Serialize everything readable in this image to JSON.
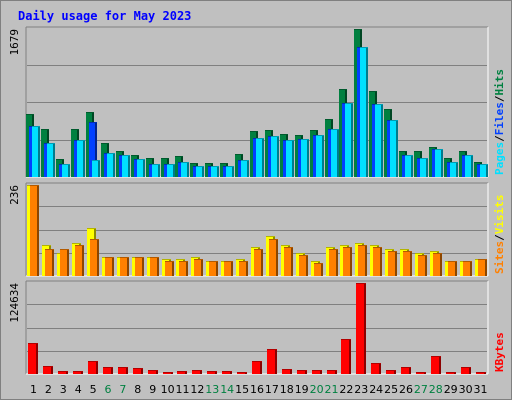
{
  "chart_data": {
    "type": "bar",
    "title": "Daily usage for May 2023",
    "categories": [
      "1",
      "2",
      "3",
      "4",
      "5",
      "6",
      "7",
      "8",
      "9",
      "10",
      "11",
      "12",
      "13",
      "14",
      "15",
      "16",
      "17",
      "18",
      "19",
      "20",
      "21",
      "22",
      "23",
      "24",
      "25",
      "26",
      "27",
      "28",
      "29",
      "30",
      "31"
    ],
    "weekend_days": [
      "6",
      "7",
      "13",
      "14",
      "20",
      "21",
      "27",
      "28"
    ],
    "panels": [
      {
        "id": "pfh",
        "max_label": "1679",
        "ymax": 1679,
        "series": [
          {
            "name": "Hits",
            "color": "#008040",
            "values": [
              720,
              540,
              205,
              540,
              740,
              385,
              300,
              245,
              210,
              210,
              240,
              155,
              155,
              155,
              265,
              525,
              530,
              485,
              475,
              530,
              660,
              1000,
              1679,
              970,
              770,
              290,
              290,
              345,
              210,
              300,
              175
            ]
          },
          {
            "name": "Files",
            "color": "#0040ff",
            "values": [
              580,
              390,
              150,
              420,
              625,
              270,
              245,
              200,
              145,
              150,
              175,
              120,
              120,
              130,
              190,
              440,
              470,
              415,
              430,
              475,
              550,
              840,
              1480,
              830,
              645,
              255,
              220,
              320,
              175,
              250,
              145
            ]
          },
          {
            "name": "Pages",
            "color": "#00e0ff",
            "values": [
              580,
              390,
              150,
              420,
              190,
              270,
              245,
              200,
              145,
              150,
              175,
              120,
              120,
              130,
              190,
              440,
              470,
              415,
              430,
              475,
              550,
              840,
              1480,
              830,
              645,
              255,
              220,
              320,
              175,
              250,
              145
            ]
          }
        ],
        "legend": [
          "Pages",
          "/",
          "Files",
          "/",
          "Hits"
        ]
      },
      {
        "id": "sv",
        "max_label": "236",
        "ymax": 236,
        "series": [
          {
            "name": "Visits",
            "color": "#ffff00",
            "values": [
              236,
              80,
              60,
              85,
              125,
              50,
              50,
              50,
              50,
              45,
              45,
              50,
              40,
              40,
              45,
              75,
              105,
              80,
              60,
              40,
              75,
              80,
              85,
              80,
              70,
              70,
              60,
              65,
              40,
              40,
              45
            ]
          },
          {
            "name": "Sites",
            "color": "#ff8000",
            "values": [
              236,
              70,
              70,
              80,
              95,
              50,
              48,
              48,
              48,
              40,
              40,
              45,
              38,
              38,
              40,
              70,
              95,
              75,
              55,
              35,
              70,
              75,
              80,
              75,
              65,
              65,
              55,
              60,
              38,
              40,
              45
            ]
          }
        ],
        "legend": [
          "Sites",
          "/",
          "Visits"
        ]
      },
      {
        "id": "kb",
        "max_label": "124634",
        "ymax": 124634,
        "series": [
          {
            "name": "KBytes",
            "color": "#ff0000",
            "values": [
              42000,
              11000,
              4000,
              4000,
              18000,
              10000,
              9000,
              8000,
              6000,
              3000,
              4000,
              5000,
              4000,
              4000,
              3000,
              18000,
              34000,
              7000,
              5000,
              5000,
              5000,
              48000,
              124634,
              15000,
              6000,
              9000,
              3000,
              24000,
              3000,
              9000,
              3000
            ]
          }
        ],
        "legend": [
          "KBytes"
        ]
      }
    ],
    "colors": {
      "title": "#0000ff",
      "weekday_label": "#000000",
      "weekend_label": "#008040",
      "legend_pages": "#00e0ff",
      "legend_files": "#0040ff",
      "legend_hits": "#008040",
      "legend_sites": "#ff8000",
      "legend_visits": "#ffff00",
      "legend_kbytes": "#ff0000"
    }
  }
}
